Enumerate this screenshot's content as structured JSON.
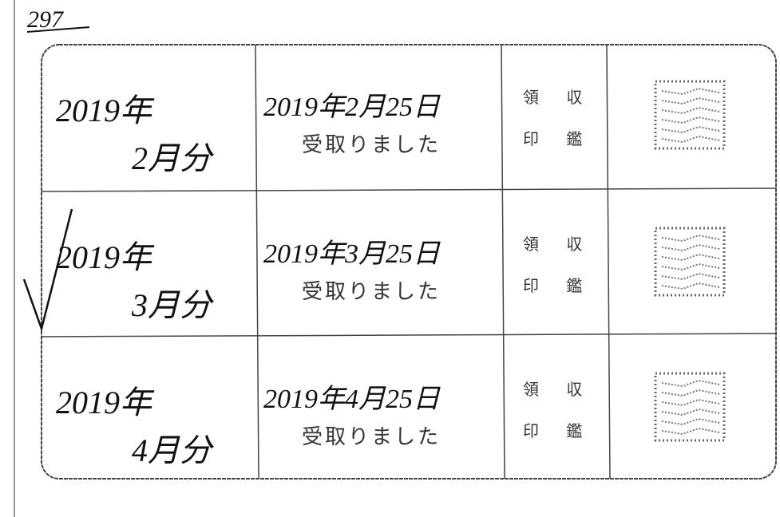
{
  "header": {
    "note": "297"
  },
  "table": {
    "rows": [
      {
        "year": "2019年",
        "month": "2月分",
        "date": "2019年2月25日",
        "status": "受取りました",
        "seal_label": [
          "領 収",
          "印 鑑"
        ]
      },
      {
        "year": "2019年",
        "month": "3月分",
        "date": "2019年3月25日",
        "status": "受取りました",
        "seal_label": [
          "領 収",
          "印 鑑"
        ]
      },
      {
        "year": "2019年",
        "month": "4月分",
        "date": "2019年4月25日",
        "status": "受取りました",
        "seal_label": [
          "領 収",
          "印 鑑"
        ]
      }
    ]
  }
}
